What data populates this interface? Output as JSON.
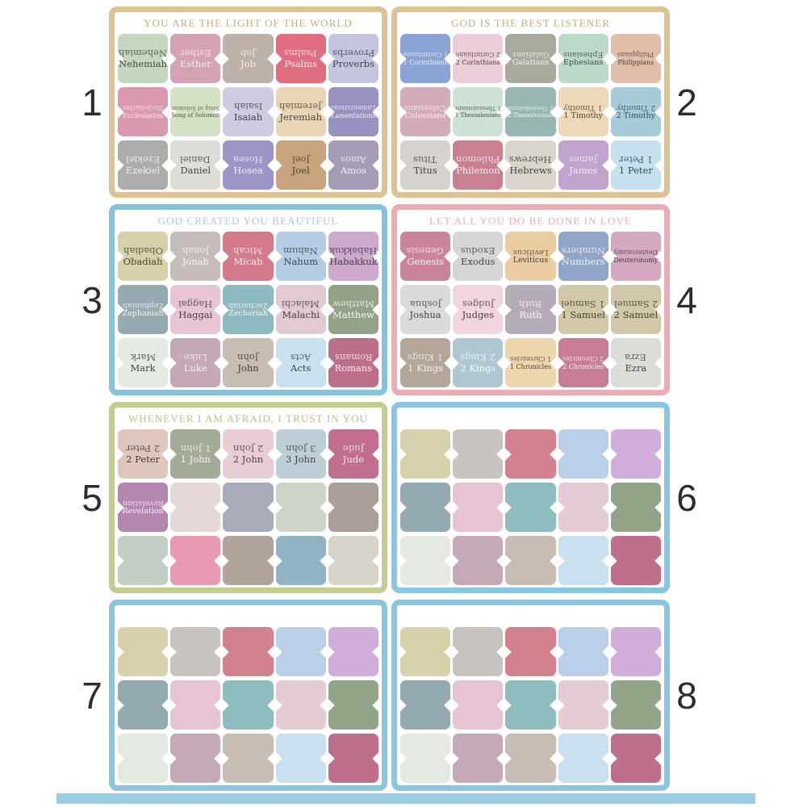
{
  "numbers_color": "#2d2d2d",
  "bottom_strip_color": "#9acde1",
  "sheets": [
    {
      "number": "1",
      "number_side": "left",
      "border_color": "#ddc294",
      "title": "YOU ARE THE LIGHT OF THE WORLD",
      "title_color": "#c9ac7e",
      "tabs": [
        {
          "label": "Nehemiah",
          "bg": "#c6d7c0",
          "fg": "#4a4a45"
        },
        {
          "label": "Esther",
          "bg": "#d4a2b2",
          "fg": "#f4eff0"
        },
        {
          "label": "Job",
          "bg": "#bdb2a9",
          "fg": "#f4f1ec"
        },
        {
          "label": "Psalms",
          "bg": "#e06d80",
          "fg": "#f7eef0"
        },
        {
          "label": "Proverbs",
          "bg": "#c3c5de",
          "fg": "#43434a"
        },
        {
          "label": "Ecclesiastes",
          "bg": "#d999ae",
          "fg": "#f4eef1"
        },
        {
          "label": "Song of Solomon",
          "bg": "#d3e1c5",
          "fg": "#4c5244"
        },
        {
          "label": "Isaiah",
          "bg": "#cecde0",
          "fg": "#3e3e48"
        },
        {
          "label": "Jeremiah",
          "bg": "#e9d4b5",
          "fg": "#4c453a"
        },
        {
          "label": "Lamentations",
          "bg": "#9892c1",
          "fg": "#f1f0f7"
        },
        {
          "label": "Ezekiel",
          "bg": "#acacac",
          "fg": "#f3f3f3"
        },
        {
          "label": "Daniel",
          "bg": "#dfddd8",
          "fg": "#44433f"
        },
        {
          "label": "Hosea",
          "bg": "#9d95c5",
          "fg": "#f2f0f8"
        },
        {
          "label": "Joel",
          "bg": "#c8a37e",
          "fg": "#463c32"
        },
        {
          "label": "Amos",
          "bg": "#a59db5",
          "fg": "#f2f0f5"
        }
      ]
    },
    {
      "number": "2",
      "number_side": "right",
      "border_color": "#ddc294",
      "title": "GOD IS THE BEST LISTENER",
      "title_color": "#c9ac7e",
      "tabs": [
        {
          "label": "1 Corinthians",
          "bg": "#8ba3d3",
          "fg": "#eef2f9"
        },
        {
          "label": "2 Corinthians",
          "bg": "#edcdd9",
          "fg": "#4a4045"
        },
        {
          "label": "Galatians",
          "bg": "#a9a99d",
          "fg": "#f4f4f0"
        },
        {
          "label": "Ephesians",
          "bg": "#bdd9c9",
          "fg": "#3f4a43"
        },
        {
          "label": "Philippians",
          "bg": "#e1bea9",
          "fg": "#4c4037"
        },
        {
          "label": "Colossians",
          "bg": "#d4abb9",
          "fg": "#f6f0f2"
        },
        {
          "label": "1 Thessalonians",
          "bg": "#cde1d5",
          "fg": "#45504a"
        },
        {
          "label": "2 Thessalonians",
          "bg": "#97b5b1",
          "fg": "#f0f5f4"
        },
        {
          "label": "1 Timothy",
          "bg": "#edd9b9",
          "fg": "#4c4434"
        },
        {
          "label": "2 Timothy",
          "bg": "#a6ccd9",
          "fg": "#3c4a52"
        },
        {
          "label": "Titus",
          "bg": "#d6d3ce",
          "fg": "#44423e"
        },
        {
          "label": "Philemon",
          "bg": "#c98091",
          "fg": "#f7eef1"
        },
        {
          "label": "Hebrews",
          "bg": "#d9d5cd",
          "fg": "#443f38"
        },
        {
          "label": "James",
          "bg": "#c1a4cd",
          "fg": "#f4eff7"
        },
        {
          "label": "1 Peter",
          "bg": "#c5e1ed",
          "fg": "#3c4850"
        }
      ]
    },
    {
      "number": "3",
      "number_side": "left",
      "border_color": "#80c4dd",
      "title": "GOD CREATED YOU BEAUTIFUL",
      "title_color": "#a6ccdf",
      "tabs": [
        {
          "label": "Obadiah",
          "bg": "#d6d1a9",
          "fg": "#49452e"
        },
        {
          "label": "Jonah",
          "bg": "#c5bdb9",
          "fg": "#f5f3f2"
        },
        {
          "label": "Micah",
          "bg": "#d37a8d",
          "fg": "#f8eef1"
        },
        {
          "label": "Nahum",
          "bg": "#b4cde5",
          "fg": "#3a4452"
        },
        {
          "label": "Habakkuk",
          "bg": "#cca9cd",
          "fg": "#473c48"
        },
        {
          "label": "Zephaniah",
          "bg": "#95aab1",
          "fg": "#eff4f5"
        },
        {
          "label": "Haggai",
          "bg": "#e7c5d5",
          "fg": "#4a3d44"
        },
        {
          "label": "Zechariah",
          "bg": "#8dbbc1",
          "fg": "#eff6f7"
        },
        {
          "label": "Malachi",
          "bg": "#e1cad2",
          "fg": "#4a4045"
        },
        {
          "label": "Matthew",
          "bg": "#94a388",
          "fg": "#f1f4ef"
        },
        {
          "label": "Mark",
          "bg": "#e5eae2",
          "fg": "#3f443e"
        },
        {
          "label": "Luke",
          "bg": "#c5a8b5",
          "fg": "#f6f1f3"
        },
        {
          "label": "John",
          "bg": "#c7bdb3",
          "fg": "#443e37"
        },
        {
          "label": "Acts",
          "bg": "#c9e1ef",
          "fg": "#39444c"
        },
        {
          "label": "Romans",
          "bg": "#bc6f8b",
          "fg": "#f8eef2"
        }
      ]
    },
    {
      "number": "4",
      "number_side": "right",
      "border_color": "#f0aab4",
      "title": "LET ALL YOU DO BE DONE IN LOVE",
      "title_color": "#eeabb8",
      "tabs": [
        {
          "label": "Genesis",
          "bg": "#ca859d",
          "fg": "#f8eff3"
        },
        {
          "label": "Exodus",
          "bg": "#d5d7d5",
          "fg": "#414441"
        },
        {
          "label": "Leviticus",
          "bg": "#e9cca1",
          "fg": "#4c4230"
        },
        {
          "label": "Numbers",
          "bg": "#91a4c9",
          "fg": "#eff2f8"
        },
        {
          "label": "Deuteronomy",
          "bg": "#d6a9c3",
          "fg": "#46353f"
        },
        {
          "label": "Joshua",
          "bg": "#d9dbd9",
          "fg": "#3f423f"
        },
        {
          "label": "Judges",
          "bg": "#f1d6de",
          "fg": "#4a3c42"
        },
        {
          "label": "Ruth",
          "bg": "#b6acb9",
          "fg": "#f5f3f6"
        },
        {
          "label": "1 Samuel",
          "bg": "#d0c8a9",
          "fg": "#46412c"
        },
        {
          "label": "2 Samuel",
          "bg": "#d0c8a9",
          "fg": "#46412c"
        },
        {
          "label": "1 Kings",
          "bg": "#b4a699",
          "fg": "#f5f1ee"
        },
        {
          "label": "2 Kings",
          "bg": "#afc7d1",
          "fg": "#f2f7f9"
        },
        {
          "label": "1 Chronicles",
          "bg": "#edd5ad",
          "fg": "#4c4330"
        },
        {
          "label": "2 Chronicles",
          "bg": "#c77e95",
          "fg": "#f8eff2"
        },
        {
          "label": "Ezra",
          "bg": "#dbddd9",
          "fg": "#3f423f"
        }
      ]
    },
    {
      "number": "5",
      "number_side": "left",
      "border_color": "#c4cd90",
      "title": "WHENEVER I AM AFRAID, I TRUST IN YOU",
      "title_color": "#c5bd8c",
      "tabs": [
        {
          "label": "2 Peter",
          "bg": "#dec6bd",
          "fg": "#483c36"
        },
        {
          "label": "1 John",
          "bg": "#a4ac98",
          "fg": "#f3f5f0"
        },
        {
          "label": "2 John",
          "bg": "#e9cdd5",
          "fg": "#4a3e43"
        },
        {
          "label": "3 John",
          "bg": "#bdced7",
          "fg": "#3a444b"
        },
        {
          "label": "Jude",
          "bg": "#c16e8f",
          "fg": "#f8eef2"
        },
        {
          "label": "Revelation",
          "bg": "#b387ae",
          "fg": "#f5eff4"
        },
        {
          "label": "",
          "bg": "#e5d9d7",
          "fg": "#444444"
        },
        {
          "label": "",
          "bg": "#a8abba",
          "fg": "#444444"
        },
        {
          "label": "",
          "bg": "#cdd4c8",
          "fg": "#444444"
        },
        {
          "label": "",
          "bg": "#a99f98",
          "fg": "#444444"
        },
        {
          "label": "",
          "bg": "#c3cfc4",
          "fg": "#444444"
        },
        {
          "label": "",
          "bg": "#e99ab2",
          "fg": "#444444"
        },
        {
          "label": "",
          "bg": "#b2a39d",
          "fg": "#444444"
        },
        {
          "label": "",
          "bg": "#91b4c4",
          "fg": "#444444"
        },
        {
          "label": "",
          "bg": "#d8d3cb",
          "fg": "#444444"
        }
      ]
    },
    {
      "number": "6",
      "number_side": "right",
      "border_color": "#88c7df",
      "title": "",
      "title_color": "#ffffff",
      "tabs": [
        {
          "label": "",
          "bg": "#d7d2ac",
          "fg": "#444444"
        },
        {
          "label": "",
          "bg": "#c9c3c0",
          "fg": "#444444"
        },
        {
          "label": "",
          "bg": "#d3808f",
          "fg": "#444444"
        },
        {
          "label": "",
          "bg": "#bacfe8",
          "fg": "#444444"
        },
        {
          "label": "",
          "bg": "#d0aed9",
          "fg": "#444444"
        },
        {
          "label": "",
          "bg": "#93aab1",
          "fg": "#444444"
        },
        {
          "label": "",
          "bg": "#e6c4d4",
          "fg": "#444444"
        },
        {
          "label": "",
          "bg": "#8fbcbf",
          "fg": "#444444"
        },
        {
          "label": "",
          "bg": "#e4ccd5",
          "fg": "#444444"
        },
        {
          "label": "",
          "bg": "#94a488",
          "fg": "#444444"
        },
        {
          "label": "",
          "bg": "#e4e9e1",
          "fg": "#444444"
        },
        {
          "label": "",
          "bg": "#c6a9b6",
          "fg": "#444444"
        },
        {
          "label": "",
          "bg": "#c8bdb4",
          "fg": "#444444"
        },
        {
          "label": "",
          "bg": "#c8e0f0",
          "fg": "#444444"
        },
        {
          "label": "",
          "bg": "#bd6f8c",
          "fg": "#444444"
        }
      ]
    },
    {
      "number": "7",
      "number_side": "left",
      "border_color": "#88c7df",
      "title": "",
      "title_color": "#ffffff",
      "tabs": [
        {
          "label": "",
          "bg": "#d7d2ac",
          "fg": "#444444"
        },
        {
          "label": "",
          "bg": "#c9c3c0",
          "fg": "#444444"
        },
        {
          "label": "",
          "bg": "#d3808f",
          "fg": "#444444"
        },
        {
          "label": "",
          "bg": "#bacfe8",
          "fg": "#444444"
        },
        {
          "label": "",
          "bg": "#d0aed9",
          "fg": "#444444"
        },
        {
          "label": "",
          "bg": "#93aab1",
          "fg": "#444444"
        },
        {
          "label": "",
          "bg": "#e6c4d4",
          "fg": "#444444"
        },
        {
          "label": "",
          "bg": "#8fbcbf",
          "fg": "#444444"
        },
        {
          "label": "",
          "bg": "#e4ccd5",
          "fg": "#444444"
        },
        {
          "label": "",
          "bg": "#94a488",
          "fg": "#444444"
        },
        {
          "label": "",
          "bg": "#e4e9e1",
          "fg": "#444444"
        },
        {
          "label": "",
          "bg": "#c6a9b6",
          "fg": "#444444"
        },
        {
          "label": "",
          "bg": "#c8bdb4",
          "fg": "#444444"
        },
        {
          "label": "",
          "bg": "#c8e0f0",
          "fg": "#444444"
        },
        {
          "label": "",
          "bg": "#bd6f8c",
          "fg": "#444444"
        }
      ]
    },
    {
      "number": "8",
      "number_side": "right",
      "border_color": "#88c7df",
      "title": "",
      "title_color": "#ffffff",
      "tabs": [
        {
          "label": "",
          "bg": "#d7d2ac",
          "fg": "#444444"
        },
        {
          "label": "",
          "bg": "#c9c3c0",
          "fg": "#444444"
        },
        {
          "label": "",
          "bg": "#d3808f",
          "fg": "#444444"
        },
        {
          "label": "",
          "bg": "#bacfe8",
          "fg": "#444444"
        },
        {
          "label": "",
          "bg": "#d0aed9",
          "fg": "#444444"
        },
        {
          "label": "",
          "bg": "#93aab1",
          "fg": "#444444"
        },
        {
          "label": "",
          "bg": "#e6c4d4",
          "fg": "#444444"
        },
        {
          "label": "",
          "bg": "#8fbcbf",
          "fg": "#444444"
        },
        {
          "label": "",
          "bg": "#e4ccd5",
          "fg": "#444444"
        },
        {
          "label": "",
          "bg": "#94a488",
          "fg": "#444444"
        },
        {
          "label": "",
          "bg": "#e4e9e1",
          "fg": "#444444"
        },
        {
          "label": "",
          "bg": "#c6a9b6",
          "fg": "#444444"
        },
        {
          "label": "",
          "bg": "#c8bdb4",
          "fg": "#444444"
        },
        {
          "label": "",
          "bg": "#c8e0f0",
          "fg": "#444444"
        },
        {
          "label": "",
          "bg": "#bd6f8c",
          "fg": "#444444"
        }
      ]
    }
  ]
}
